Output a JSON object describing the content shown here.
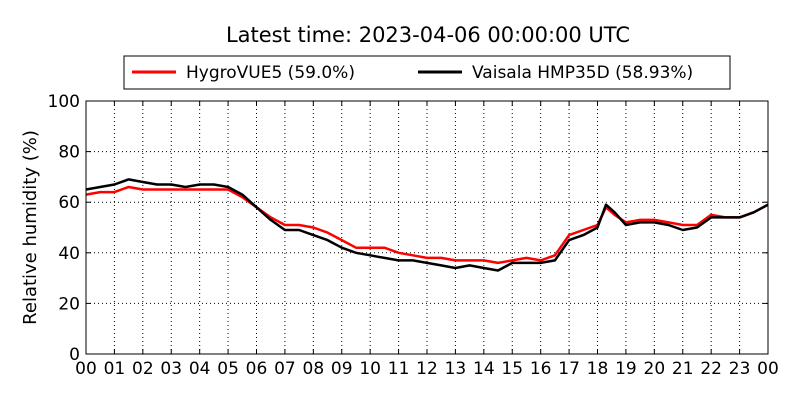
{
  "chart_data": {
    "type": "line",
    "title": "Latest time: 2023-04-06 00:00:00 UTC",
    "xlabel": "",
    "ylabel": "Relative humidity (%)",
    "xlim": [
      0,
      24
    ],
    "ylim": [
      0,
      100
    ],
    "grid": true,
    "legend_position": "top-center",
    "x_tick_values": [
      0,
      1,
      2,
      3,
      4,
      5,
      6,
      7,
      8,
      9,
      10,
      11,
      12,
      13,
      14,
      15,
      16,
      17,
      18,
      19,
      20,
      21,
      22,
      23,
      24
    ],
    "x_tick_labels": [
      "00",
      "01",
      "02",
      "03",
      "04",
      "05",
      "06",
      "07",
      "08",
      "09",
      "10",
      "11",
      "12",
      "13",
      "14",
      "15",
      "16",
      "17",
      "18",
      "19",
      "20",
      "21",
      "22",
      "23",
      "00"
    ],
    "y_tick_values": [
      0,
      20,
      40,
      60,
      80,
      100
    ],
    "y_tick_labels": [
      "0",
      "20",
      "40",
      "60",
      "80",
      "100"
    ],
    "series": [
      {
        "name": "HygroVUE5 (59.0%)",
        "color": "#ff0000",
        "x": [
          0,
          0.5,
          1,
          1.5,
          2,
          2.5,
          3,
          3.5,
          4,
          4.5,
          5,
          5.5,
          6,
          6.5,
          7,
          7.5,
          8,
          8.5,
          9,
          9.5,
          10,
          10.5,
          11,
          11.5,
          12,
          12.5,
          13,
          13.5,
          14,
          14.5,
          15,
          15.5,
          16,
          16.5,
          17,
          17.5,
          18,
          18.3,
          18.6,
          19,
          19.5,
          20,
          20.5,
          21,
          21.5,
          22,
          22.5,
          23,
          23.5,
          24
        ],
        "y": [
          63,
          64,
          64,
          66,
          65,
          65,
          65,
          65,
          65,
          65,
          65,
          62,
          58,
          54,
          51,
          51,
          50,
          48,
          45,
          42,
          42,
          42,
          40,
          39,
          38,
          38,
          37,
          37,
          37,
          36,
          37,
          38,
          37,
          39,
          47,
          49,
          51,
          58,
          55,
          52,
          53,
          53,
          52,
          51,
          51,
          55,
          54,
          54,
          56,
          59
        ]
      },
      {
        "name": "Vaisala HMP35D (58.93%)",
        "color": "#000000",
        "x": [
          0,
          0.5,
          1,
          1.5,
          2,
          2.5,
          3,
          3.5,
          4,
          4.5,
          5,
          5.5,
          6,
          6.5,
          7,
          7.5,
          8,
          8.5,
          9,
          9.5,
          10,
          10.5,
          11,
          11.5,
          12,
          12.5,
          13,
          13.5,
          14,
          14.5,
          15,
          15.5,
          16,
          16.5,
          17,
          17.5,
          18,
          18.3,
          18.6,
          19,
          19.5,
          20,
          20.5,
          21,
          21.5,
          22,
          22.5,
          23,
          23.5,
          24
        ],
        "y": [
          65,
          66,
          67,
          69,
          68,
          67,
          67,
          66,
          67,
          67,
          66,
          63,
          58,
          53,
          49,
          49,
          47,
          45,
          42,
          40,
          39,
          38,
          37,
          37,
          36,
          35,
          34,
          35,
          34,
          33,
          36,
          36,
          36,
          37,
          45,
          47,
          50,
          59,
          56,
          51,
          52,
          52,
          51,
          49,
          50,
          54,
          54,
          54,
          56,
          59
        ]
      }
    ]
  }
}
